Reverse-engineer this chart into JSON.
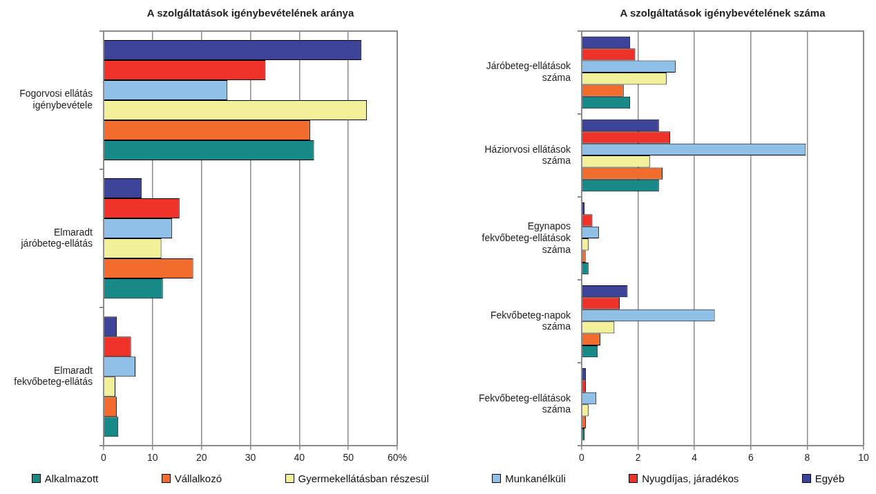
{
  "chart_data": [
    {
      "type": "bar",
      "orientation": "horizontal",
      "title": "A szolgáltatások igénybevételének aránya",
      "categories": [
        "Fogorvosi ellátás igénybevétele",
        "Elmaradt járóbeteg-ellátás",
        "Elmaradt fekvőbeteg-ellátás"
      ],
      "series": [
        {
          "name": "Alkalmazott",
          "color": "#178a87",
          "values": [
            43.0,
            12.1,
            3.0
          ]
        },
        {
          "name": "Vállalkozó",
          "color": "#f26c2d",
          "values": [
            42.2,
            18.3,
            2.7
          ]
        },
        {
          "name": "Gyermekellátásban részesül",
          "color": "#f3f09a",
          "values": [
            53.8,
            11.8,
            2.4
          ]
        },
        {
          "name": "Munkanélküli",
          "color": "#8fc0e8",
          "values": [
            25.3,
            14.0,
            6.5
          ]
        },
        {
          "name": "Nyugdíjas, járadékos",
          "color": "#ee3229",
          "values": [
            33.1,
            15.5,
            5.6
          ]
        },
        {
          "name": "Egyéb",
          "color": "#3d4399",
          "values": [
            52.7,
            7.8,
            2.7
          ]
        }
      ],
      "xlim": [
        0,
        60
      ],
      "xticks": [
        0,
        10,
        20,
        30,
        40,
        50,
        {
          "value": 60,
          "label": "60%"
        }
      ],
      "grid": "x",
      "legend": "bottom"
    },
    {
      "type": "bar",
      "orientation": "horizontal",
      "title": "A szolgáltatások igénybevételének száma",
      "categories": [
        "Járóbeteg-ellátások száma",
        "Háziorvosi ellátások száma",
        "Egynapos fekvőbeteg-ellátások száma",
        "Fekvőbeteg-napok száma",
        "Fekvőbeteg-ellátások száma"
      ],
      "series": [
        {
          "color": "#178a87",
          "values": [
            1.72,
            2.74,
            0.24,
            0.57,
            0.1
          ]
        },
        {
          "color": "#f26c2d",
          "values": [
            1.49,
            2.87,
            0.14,
            0.66,
            0.15
          ]
        },
        {
          "color": "#f3f09a",
          "values": [
            3.01,
            2.42,
            0.24,
            1.16,
            0.24
          ]
        },
        {
          "color": "#8fc0e8",
          "values": [
            3.33,
            7.95,
            0.61,
            4.72,
            0.52
          ]
        },
        {
          "color": "#ee3229",
          "values": [
            1.9,
            3.14,
            0.38,
            1.35,
            0.15
          ]
        },
        {
          "color": "#3d4399",
          "values": [
            1.72,
            2.74,
            0.1,
            1.63,
            0.15
          ]
        }
      ],
      "xlim": [
        0,
        10
      ],
      "xticks": [
        0,
        2,
        4,
        6,
        8,
        10
      ],
      "grid": "x"
    }
  ]
}
